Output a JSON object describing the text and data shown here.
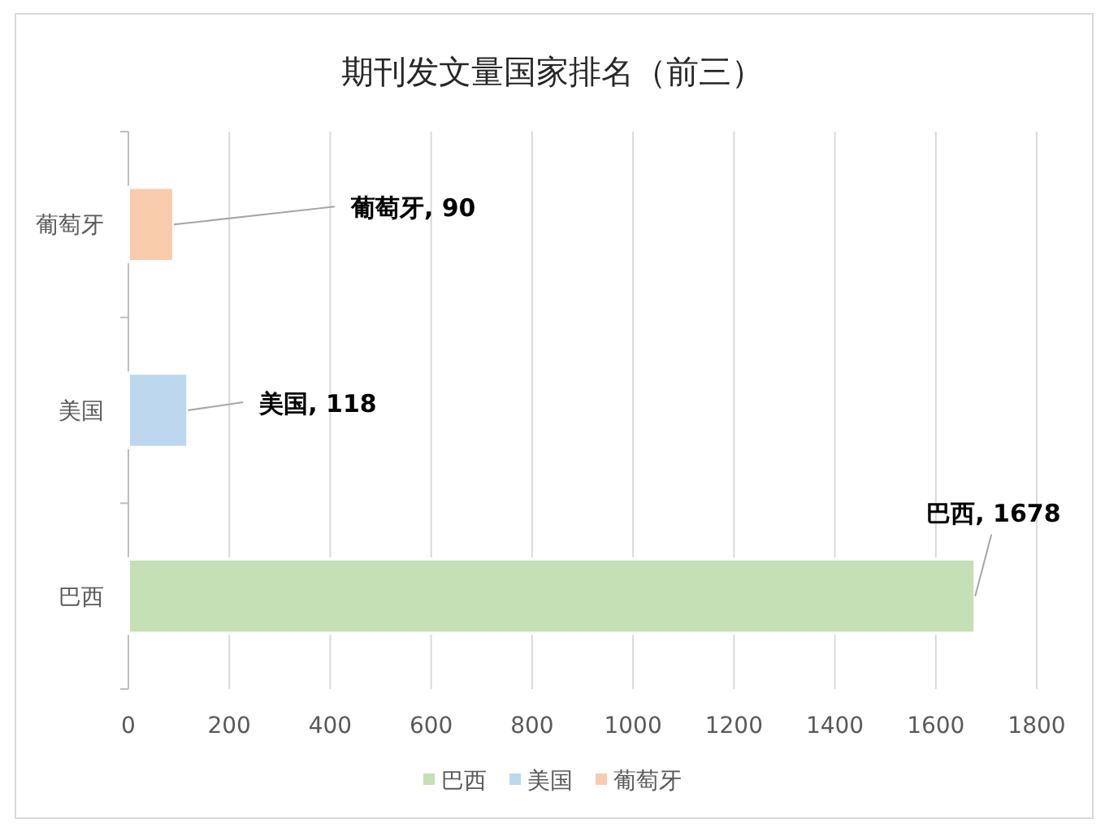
{
  "chart_data": {
    "type": "bar",
    "orientation": "horizontal",
    "title": "期刊发文量国家排名（前三）",
    "categories": [
      "葡萄牙",
      "美国",
      "巴西"
    ],
    "series": [
      {
        "name": "巴西",
        "color": "#c5e0b4",
        "values": [
          null,
          null,
          1678
        ],
        "value_labels": [
          null,
          null,
          "巴西, 1678"
        ]
      },
      {
        "name": "美国",
        "color": "#bdd7ee",
        "values": [
          null,
          118,
          null
        ],
        "value_labels": [
          null,
          "美国, 118",
          null
        ]
      },
      {
        "name": "葡萄牙",
        "color": "#f8cbad",
        "values": [
          90,
          null,
          null
        ],
        "value_labels": [
          "葡萄牙, 90",
          null,
          null
        ]
      }
    ],
    "xlim": [
      0,
      1800
    ],
    "xticks": [
      0,
      200,
      400,
      600,
      800,
      1000,
      1200,
      1400,
      1600,
      1800
    ],
    "grid": "x",
    "legend": "bottom"
  }
}
